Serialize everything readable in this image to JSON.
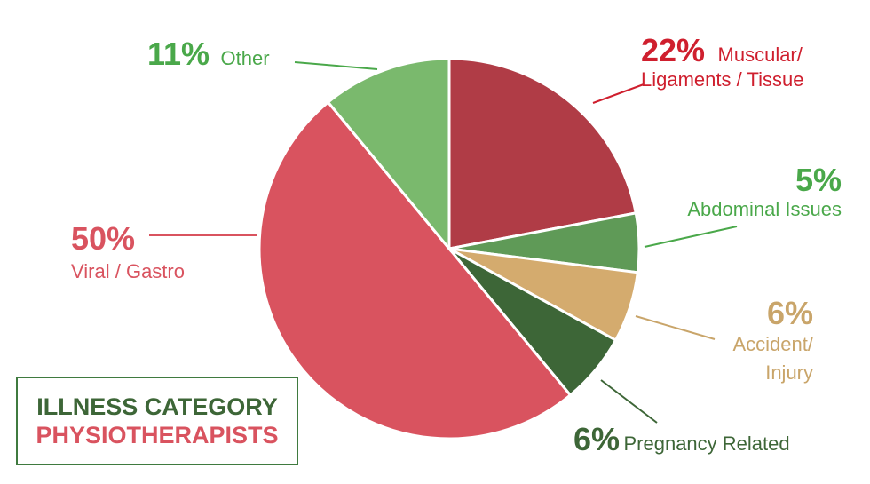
{
  "chart_data": {
    "type": "pie",
    "slices": [
      {
        "pct_label": "22%",
        "label": "Muscular/\nLigaments / Tissue",
        "value": 22,
        "color": "#b03c46"
      },
      {
        "pct_label": "5%",
        "label": "Abdominal Issues",
        "value": 5,
        "color": "#5f9a57"
      },
      {
        "pct_label": "6%",
        "label": "Accident/\nInjury",
        "value": 6,
        "color": "#d4ab6e"
      },
      {
        "pct_label": "6%",
        "label": "Pregnancy Related",
        "value": 6,
        "color": "#3d6637"
      },
      {
        "pct_label": "50%",
        "label": "Viral / Gastro",
        "value": 50,
        "color": "#d9535f"
      },
      {
        "pct_label": "11%",
        "label": "Other",
        "value": 11,
        "color": "#7ab96d"
      }
    ],
    "label_colors": {
      "muscular": "#cf1f2e",
      "abdominal": "#4aa84a",
      "accident": "#c9a56a",
      "pregnancy": "#3d6637",
      "viral": "#d9535f",
      "other": "#4aa84a"
    }
  },
  "legend": {
    "line1": "ILLNESS CATEGORY",
    "line2": "PHYSIOTHERAPISTS",
    "line1_color": "#3d6637",
    "line2_color": "#d9535f",
    "border_color": "#3f7a3f"
  }
}
